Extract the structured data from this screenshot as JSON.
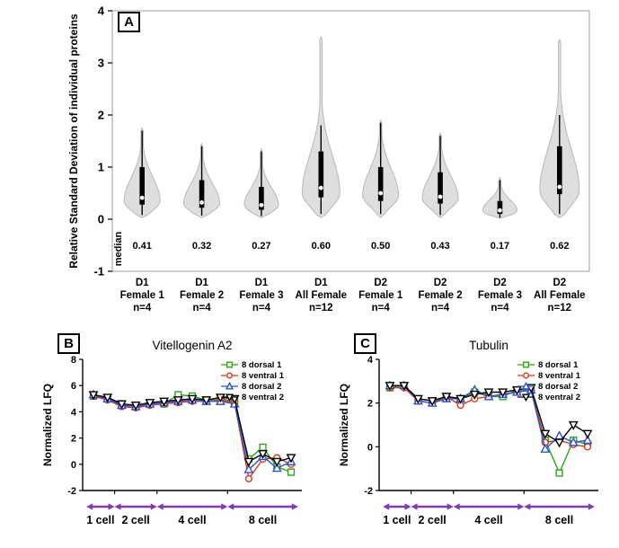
{
  "figure": {
    "background": "#ffffff",
    "panels": {
      "a": "A",
      "b": "B",
      "c": "C"
    }
  },
  "chart_data": [
    {
      "type": "violin",
      "panel": "A",
      "title": "",
      "xlabel": "",
      "ylabel": "Relative Standard Deviation of individual proteins",
      "ylim": [
        -1,
        4
      ],
      "yticks": [
        -1,
        0,
        1,
        2,
        3,
        4
      ],
      "median_row_label": "median",
      "style": {
        "fill": "#dedede",
        "outline": "#b8b8b8",
        "box_color": "#000000",
        "border": "#9c9c9c"
      },
      "groups": [
        {
          "label_lines": [
            "D1",
            "Female 1",
            "n=4"
          ],
          "median": 0.41,
          "median_label": "0.41",
          "mode": 0.35,
          "sigma_low": 0.18,
          "sigma_high": 0.45,
          "min": 0.03,
          "max": 1.75,
          "halfwidth": 20,
          "box": [
            0.28,
            1.0
          ],
          "whiskers": [
            0.08,
            1.7
          ]
        },
        {
          "label_lines": [
            "D1",
            "Female 2",
            "n=4"
          ],
          "median": 0.32,
          "median_label": "0.32",
          "mode": 0.3,
          "sigma_low": 0.15,
          "sigma_high": 0.38,
          "min": 0.03,
          "max": 1.45,
          "halfwidth": 20,
          "box": [
            0.22,
            0.75
          ],
          "whiskers": [
            0.07,
            1.4
          ]
        },
        {
          "label_lines": [
            "D1",
            "Female 3",
            "n=4"
          ],
          "median": 0.27,
          "median_label": "0.27",
          "mode": 0.27,
          "sigma_low": 0.13,
          "sigma_high": 0.33,
          "min": 0.03,
          "max": 1.35,
          "halfwidth": 19,
          "box": [
            0.18,
            0.62
          ],
          "whiskers": [
            0.06,
            1.3
          ]
        },
        {
          "label_lines": [
            "D1",
            "All Female",
            "n=12"
          ],
          "median": 0.6,
          "median_label": "0.60",
          "mode": 0.5,
          "sigma_low": 0.25,
          "sigma_high": 0.72,
          "min": 0.03,
          "max": 3.5,
          "halfwidth": 21,
          "box": [
            0.42,
            1.3
          ],
          "whiskers": [
            0.1,
            1.8
          ]
        },
        {
          "label_lines": [
            "D2",
            "Female 1",
            "n=4"
          ],
          "median": 0.5,
          "median_label": "0.50",
          "mode": 0.45,
          "sigma_low": 0.2,
          "sigma_high": 0.5,
          "min": 0.03,
          "max": 1.9,
          "halfwidth": 20,
          "box": [
            0.35,
            1.0
          ],
          "whiskers": [
            0.1,
            1.85
          ]
        },
        {
          "label_lines": [
            "D2",
            "Female 2",
            "n=4"
          ],
          "median": 0.43,
          "median_label": "0.43",
          "mode": 0.4,
          "sigma_low": 0.18,
          "sigma_high": 0.42,
          "min": 0.03,
          "max": 1.65,
          "halfwidth": 20,
          "box": [
            0.3,
            0.9
          ],
          "whiskers": [
            0.08,
            1.6
          ]
        },
        {
          "label_lines": [
            "D2",
            "Female 3",
            "n=4"
          ],
          "median": 0.17,
          "median_label": "0.17",
          "mode": 0.17,
          "sigma_low": 0.1,
          "sigma_high": 0.2,
          "min": 0.02,
          "max": 0.8,
          "halfwidth": 19,
          "box": [
            0.1,
            0.35
          ],
          "whiskers": [
            0.03,
            0.75
          ]
        },
        {
          "label_lines": [
            "D2",
            "All Female",
            "n=12"
          ],
          "median": 0.62,
          "median_label": "0.62",
          "mode": 0.55,
          "sigma_low": 0.28,
          "sigma_high": 0.78,
          "min": 0.03,
          "max": 3.45,
          "halfwidth": 22,
          "box": [
            0.48,
            1.4
          ],
          "whiskers": [
            0.1,
            2.0
          ]
        }
      ]
    },
    {
      "type": "line",
      "panel": "B",
      "title": "Vitellogenin A2",
      "xlabel": "",
      "ylabel": "Normalized LFQ",
      "ylim": [
        -2,
        8
      ],
      "yticks": [
        -2,
        0,
        2,
        4,
        6,
        8
      ],
      "legend_position": "top-right",
      "arrow_color": "#7d3cb5",
      "stages": [
        {
          "label": "1 cell",
          "from": 0,
          "to": 1
        },
        {
          "label": "2 cell",
          "from": 2,
          "to": 4
        },
        {
          "label": "4 cell",
          "from": 5,
          "to": 9
        },
        {
          "label": "8 cell",
          "from": 10,
          "to": 14
        }
      ],
      "series": [
        {
          "name": "8 dorsal 1",
          "color": "#2ca516",
          "marker": "square",
          "values": [
            5.2,
            5.0,
            4.5,
            4.4,
            4.6,
            4.6,
            5.3,
            5.2,
            4.9,
            5.0,
            4.8,
            0.4,
            1.3,
            -0.2,
            -0.6
          ]
        },
        {
          "name": "8 ventral 1",
          "color": "#e03818",
          "marker": "circle",
          "values": [
            5.2,
            4.9,
            4.4,
            4.3,
            4.5,
            4.6,
            4.7,
            4.8,
            4.8,
            4.9,
            4.7,
            -1.1,
            0.4,
            0.5,
            0.0
          ]
        },
        {
          "name": "8 dorsal 2",
          "color": "#2c50d8",
          "marker": "triangle-up",
          "values": [
            5.3,
            5.0,
            4.5,
            4.4,
            4.6,
            4.7,
            4.8,
            4.9,
            4.8,
            4.8,
            4.6,
            -0.4,
            0.6,
            -0.3,
            0.2
          ]
        },
        {
          "name": "8 ventral 2",
          "color": "#000000",
          "marker": "triangle-down",
          "values": [
            5.3,
            5.1,
            4.6,
            4.5,
            4.7,
            4.8,
            4.9,
            5.0,
            4.9,
            5.1,
            5.0,
            0.2,
            0.8,
            0.2,
            0.5
          ]
        }
      ]
    },
    {
      "type": "line",
      "panel": "C",
      "title": "Tubulin",
      "xlabel": "",
      "ylabel": "Normalized LFQ",
      "ylim": [
        -2,
        4
      ],
      "yticks": [
        -2,
        0,
        2,
        4
      ],
      "legend_position": "top-right",
      "arrow_color": "#7d3cb5",
      "stages": [
        {
          "label": "1 cell",
          "from": 0,
          "to": 1
        },
        {
          "label": "2 cell",
          "from": 2,
          "to": 4
        },
        {
          "label": "4 cell",
          "from": 5,
          "to": 9
        },
        {
          "label": "8 cell",
          "from": 10,
          "to": 14
        }
      ],
      "series": [
        {
          "name": "8 dorsal 1",
          "color": "#2ca516",
          "marker": "square",
          "values": [
            2.7,
            2.8,
            2.2,
            2.1,
            2.3,
            2.2,
            2.5,
            2.3,
            2.3,
            2.6,
            2.6,
            0.3,
            -1.2,
            0.3,
            0.1
          ]
        },
        {
          "name": "8 ventral 1",
          "color": "#e03818",
          "marker": "circle",
          "values": [
            2.7,
            2.7,
            2.1,
            2.0,
            2.3,
            1.9,
            2.2,
            2.3,
            2.4,
            2.5,
            2.6,
            0.2,
            0.3,
            0.1,
            0.0
          ]
        },
        {
          "name": "8 dorsal 2",
          "color": "#2c50d8",
          "marker": "triangle-up",
          "values": [
            2.8,
            2.8,
            2.1,
            2.0,
            2.2,
            2.2,
            2.6,
            2.3,
            2.4,
            2.5,
            2.6,
            -0.1,
            0.5,
            0.2,
            0.3
          ]
        },
        {
          "name": "8 ventral 2",
          "color": "#000000",
          "marker": "triangle-down",
          "values": [
            2.8,
            2.8,
            2.2,
            2.1,
            2.3,
            2.2,
            2.4,
            2.5,
            2.5,
            2.6,
            2.7,
            0.6,
            0.2,
            1.0,
            0.6
          ]
        }
      ]
    }
  ]
}
